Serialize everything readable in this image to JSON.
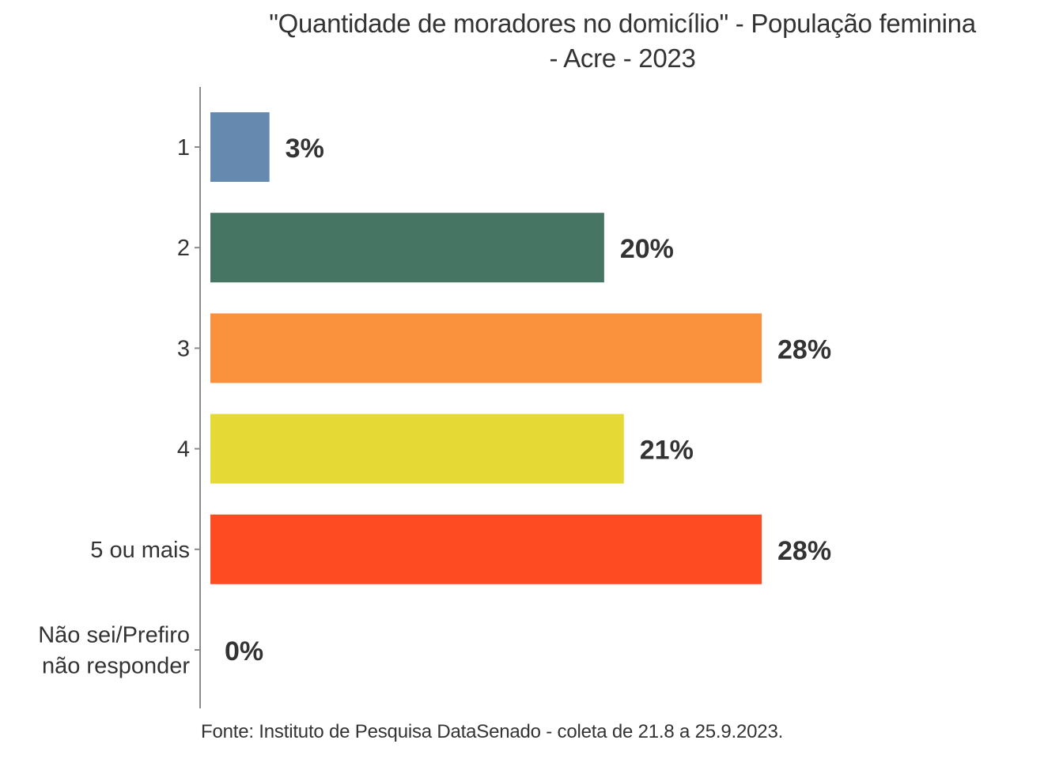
{
  "chart_data": {
    "type": "bar",
    "orientation": "horizontal",
    "title": "\"Quantidade de moradores no domicílio\" - População feminina - Acre - 2023",
    "title_lines": [
      "\"Quantidade de moradores no domicílio\" - População feminina",
      "- Acre - 2023"
    ],
    "categories": [
      "1",
      "2",
      "3",
      "4",
      "5 ou mais",
      "Não sei/Prefiro não responder"
    ],
    "category_lines": [
      [
        "1"
      ],
      [
        "2"
      ],
      [
        "3"
      ],
      [
        "4"
      ],
      [
        "5 ou mais"
      ],
      [
        "Não sei/Prefiro",
        "não responder"
      ]
    ],
    "values": [
      3,
      20,
      28,
      21,
      28,
      0
    ],
    "value_labels": [
      "3%",
      "20%",
      "28%",
      "21%",
      "28%",
      "0%"
    ],
    "colors": [
      "#6689b0",
      "#467563",
      "#f9913d",
      "#e5d935",
      "#ff4b22",
      "#999999"
    ],
    "xlabel": "",
    "ylabel": "",
    "xlim": [
      0,
      28
    ],
    "grid": false,
    "legend": "none",
    "caption": "Fonte: Instituto de Pesquisa DataSenado - coleta de 21.8 a 25.9.2023."
  }
}
